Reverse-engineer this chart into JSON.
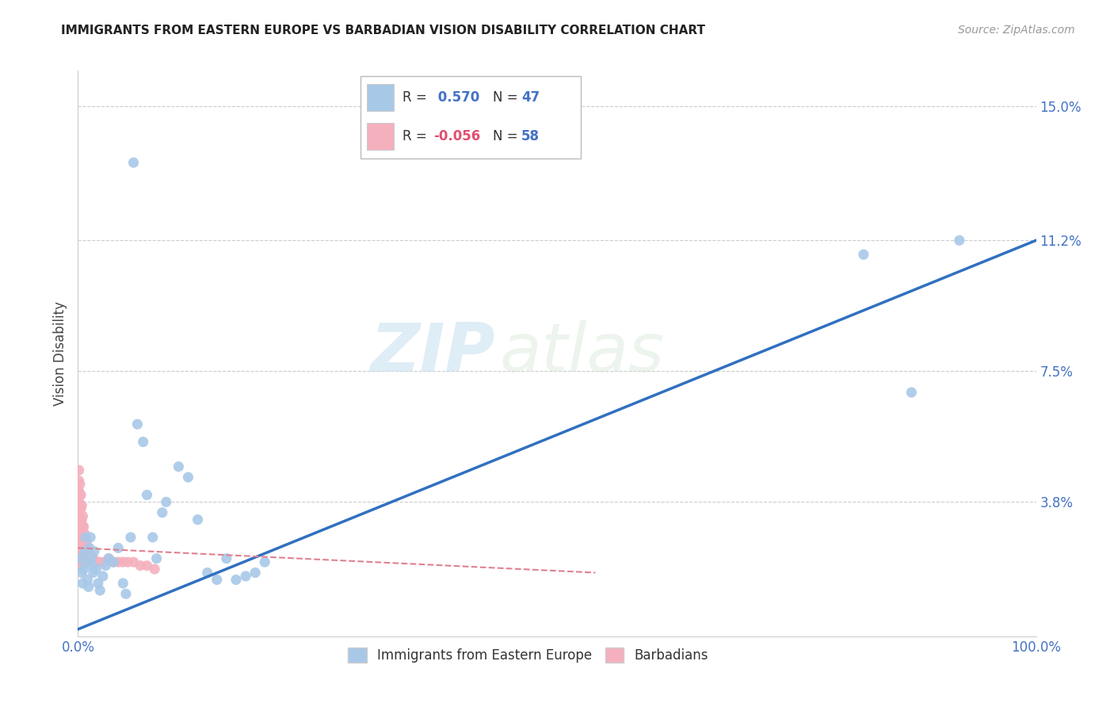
{
  "title": "IMMIGRANTS FROM EASTERN EUROPE VS BARBADIAN VISION DISABILITY CORRELATION CHART",
  "source": "Source: ZipAtlas.com",
  "ylabel_label": "Vision Disability",
  "xlim": [
    0.0,
    1.0
  ],
  "ylim": [
    0.0,
    0.16
  ],
  "r_blue": 0.57,
  "n_blue": 47,
  "r_pink": -0.056,
  "n_pink": 58,
  "legend_labels": [
    "Immigrants from Eastern Europe",
    "Barbadians"
  ],
  "blue_color": "#a8c8e8",
  "pink_color": "#f5b0be",
  "blue_line_color": "#3070c0",
  "pink_line_color": "#e08090",
  "watermark_zip": "ZIP",
  "watermark_atlas": "atlas",
  "ytick_vals": [
    0.038,
    0.075,
    0.112,
    0.15
  ],
  "ytick_labels": [
    "3.8%",
    "7.5%",
    "11.2%",
    "15.0%"
  ],
  "xtick_vals": [
    0.0,
    1.0
  ],
  "xtick_labels": [
    "0.0%",
    "100.0%"
  ],
  "blue_scatter": [
    [
      0.002,
      0.022
    ],
    [
      0.004,
      0.018
    ],
    [
      0.005,
      0.015
    ],
    [
      0.006,
      0.019
    ],
    [
      0.007,
      0.024
    ],
    [
      0.008,
      0.028
    ],
    [
      0.009,
      0.021
    ],
    [
      0.01,
      0.016
    ],
    [
      0.011,
      0.014
    ],
    [
      0.012,
      0.025
    ],
    [
      0.013,
      0.028
    ],
    [
      0.014,
      0.022
    ],
    [
      0.015,
      0.02
    ],
    [
      0.016,
      0.018
    ],
    [
      0.017,
      0.024
    ],
    [
      0.019,
      0.019
    ],
    [
      0.021,
      0.015
    ],
    [
      0.023,
      0.013
    ],
    [
      0.026,
      0.017
    ],
    [
      0.029,
      0.02
    ],
    [
      0.032,
      0.022
    ],
    [
      0.037,
      0.021
    ],
    [
      0.042,
      0.025
    ],
    [
      0.047,
      0.015
    ],
    [
      0.05,
      0.012
    ],
    [
      0.055,
      0.028
    ],
    [
      0.062,
      0.06
    ],
    [
      0.068,
      0.055
    ],
    [
      0.072,
      0.04
    ],
    [
      0.078,
      0.028
    ],
    [
      0.082,
      0.022
    ],
    [
      0.088,
      0.035
    ],
    [
      0.092,
      0.038
    ],
    [
      0.105,
      0.048
    ],
    [
      0.115,
      0.045
    ],
    [
      0.125,
      0.033
    ],
    [
      0.135,
      0.018
    ],
    [
      0.145,
      0.016
    ],
    [
      0.155,
      0.022
    ],
    [
      0.165,
      0.016
    ],
    [
      0.175,
      0.017
    ],
    [
      0.185,
      0.018
    ],
    [
      0.195,
      0.021
    ],
    [
      0.058,
      0.134
    ],
    [
      0.82,
      0.108
    ],
    [
      0.87,
      0.069
    ],
    [
      0.92,
      0.112
    ]
  ],
  "pink_scatter": [
    [
      0.001,
      0.047
    ],
    [
      0.001,
      0.044
    ],
    [
      0.001,
      0.041
    ],
    [
      0.001,
      0.038
    ],
    [
      0.001,
      0.035
    ],
    [
      0.001,
      0.031
    ],
    [
      0.001,
      0.028
    ],
    [
      0.001,
      0.025
    ],
    [
      0.002,
      0.043
    ],
    [
      0.002,
      0.04
    ],
    [
      0.002,
      0.037
    ],
    [
      0.002,
      0.033
    ],
    [
      0.002,
      0.03
    ],
    [
      0.002,
      0.027
    ],
    [
      0.002,
      0.024
    ],
    [
      0.002,
      0.021
    ],
    [
      0.003,
      0.04
    ],
    [
      0.003,
      0.036
    ],
    [
      0.003,
      0.032
    ],
    [
      0.003,
      0.029
    ],
    [
      0.003,
      0.026
    ],
    [
      0.003,
      0.023
    ],
    [
      0.003,
      0.02
    ],
    [
      0.004,
      0.037
    ],
    [
      0.004,
      0.033
    ],
    [
      0.004,
      0.03
    ],
    [
      0.004,
      0.027
    ],
    [
      0.004,
      0.024
    ],
    [
      0.005,
      0.034
    ],
    [
      0.005,
      0.031
    ],
    [
      0.005,
      0.028
    ],
    [
      0.005,
      0.025
    ],
    [
      0.006,
      0.031
    ],
    [
      0.006,
      0.028
    ],
    [
      0.006,
      0.025
    ],
    [
      0.007,
      0.029
    ],
    [
      0.007,
      0.026
    ],
    [
      0.007,
      0.023
    ],
    [
      0.008,
      0.027
    ],
    [
      0.008,
      0.024
    ],
    [
      0.009,
      0.026
    ],
    [
      0.009,
      0.022
    ],
    [
      0.01,
      0.024
    ],
    [
      0.01,
      0.021
    ],
    [
      0.013,
      0.023
    ],
    [
      0.016,
      0.022
    ],
    [
      0.019,
      0.021
    ],
    [
      0.022,
      0.021
    ],
    [
      0.027,
      0.021
    ],
    [
      0.032,
      0.022
    ],
    [
      0.037,
      0.021
    ],
    [
      0.042,
      0.021
    ],
    [
      0.047,
      0.021
    ],
    [
      0.052,
      0.021
    ],
    [
      0.058,
      0.021
    ],
    [
      0.065,
      0.02
    ],
    [
      0.072,
      0.02
    ],
    [
      0.08,
      0.019
    ]
  ],
  "blue_trendline_x": [
    0.0,
    1.0
  ],
  "blue_trendline_y": [
    0.002,
    0.112
  ],
  "pink_trendline_x": [
    0.0,
    0.54
  ],
  "pink_trendline_y": [
    0.025,
    0.018
  ]
}
